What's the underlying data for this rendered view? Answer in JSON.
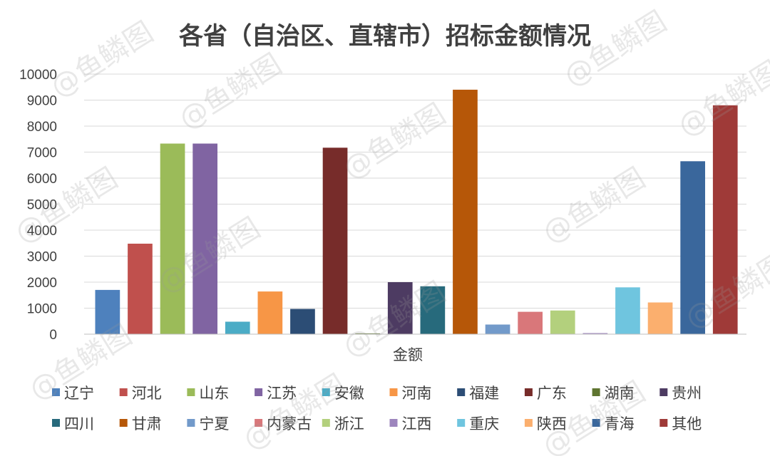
{
  "chart_data": {
    "type": "bar",
    "title": "各省（自治区、直辖市）招标金额情况",
    "xlabel": "金额",
    "ylabel": "",
    "ylim": [
      0,
      10000
    ],
    "yticks": [
      0,
      1000,
      2000,
      3000,
      4000,
      5000,
      6000,
      7000,
      8000,
      9000,
      10000
    ],
    "grid": true,
    "legend_position": "bottom",
    "categories": [
      "金额"
    ],
    "series": [
      {
        "name": "辽宁",
        "values": [
          1700
        ],
        "color": "#4e81bd"
      },
      {
        "name": "河北",
        "values": [
          3480
        ],
        "color": "#c0504d"
      },
      {
        "name": "山东",
        "values": [
          7330
        ],
        "color": "#9bbb59"
      },
      {
        "name": "江苏",
        "values": [
          7330
        ],
        "color": "#8064a2"
      },
      {
        "name": "安徽",
        "values": [
          480
        ],
        "color": "#4bacc6"
      },
      {
        "name": "河南",
        "values": [
          1640
        ],
        "color": "#f79646"
      },
      {
        "name": "福建",
        "values": [
          970
        ],
        "color": "#2c4d75"
      },
      {
        "name": "广东",
        "values": [
          7170
        ],
        "color": "#772c2a"
      },
      {
        "name": "湖南",
        "values": [
          30
        ],
        "color": "#5f7530"
      },
      {
        "name": "贵州",
        "values": [
          2000
        ],
        "color": "#4d3b62"
      },
      {
        "name": "四川",
        "values": [
          1840
        ],
        "color": "#276a7c"
      },
      {
        "name": "甘肃",
        "values": [
          9400
        ],
        "color": "#b65708"
      },
      {
        "name": "宁夏",
        "values": [
          370
        ],
        "color": "#729aca"
      },
      {
        "name": "内蒙古",
        "values": [
          860
        ],
        "color": "#d9777a"
      },
      {
        "name": "浙江",
        "values": [
          910
        ],
        "color": "#b3d07d"
      },
      {
        "name": "江西",
        "values": [
          40
        ],
        "color": "#9d85bd"
      },
      {
        "name": "重庆",
        "values": [
          1800
        ],
        "color": "#6fc5df"
      },
      {
        "name": "陕西",
        "values": [
          1220
        ],
        "color": "#fbaf6e"
      },
      {
        "name": "青海",
        "values": [
          6650
        ],
        "color": "#3a679c"
      },
      {
        "name": "其他",
        "values": [
          8800
        ],
        "color": "#9f3a38"
      }
    ]
  },
  "watermark": {
    "text": "@鱼鳞图"
  }
}
